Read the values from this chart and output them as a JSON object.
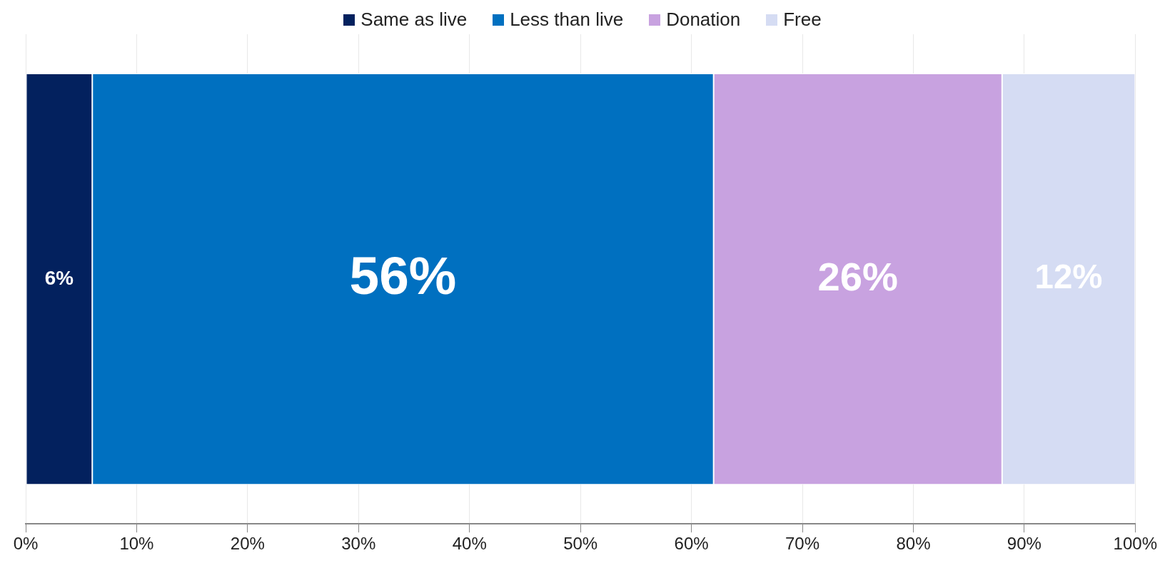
{
  "chart_data": {
    "type": "bar",
    "orientation": "horizontal",
    "stacked": true,
    "categories": [
      null
    ],
    "series": [
      {
        "name": "Same as live",
        "color": "#03215e",
        "values": [
          6
        ],
        "value_labels": [
          "6%"
        ]
      },
      {
        "name": "Less than live",
        "color": "#0070c0",
        "values": [
          56
        ],
        "value_labels": [
          "56%"
        ]
      },
      {
        "name": "Donation",
        "color": "#c8a2e0",
        "values": [
          26
        ],
        "value_labels": [
          "26%"
        ]
      },
      {
        "name": "Free",
        "color": "#d5dcf3",
        "values": [
          12
        ],
        "value_labels": [
          "12%"
        ]
      }
    ],
    "xlim": [
      0,
      100
    ],
    "xticks": [
      {
        "value": 0,
        "label": "0%"
      },
      {
        "value": 10,
        "label": "10%"
      },
      {
        "value": 20,
        "label": "20%"
      },
      {
        "value": 30,
        "label": "30%"
      },
      {
        "value": 40,
        "label": "40%"
      },
      {
        "value": 50,
        "label": "50%"
      },
      {
        "value": 60,
        "label": "60%"
      },
      {
        "value": 70,
        "label": "70%"
      },
      {
        "value": 80,
        "label": "80%"
      },
      {
        "value": 90,
        "label": "90%"
      },
      {
        "value": 100,
        "label": "100%"
      }
    ],
    "grid": "x",
    "legend": "top",
    "tick_labels": "x"
  }
}
